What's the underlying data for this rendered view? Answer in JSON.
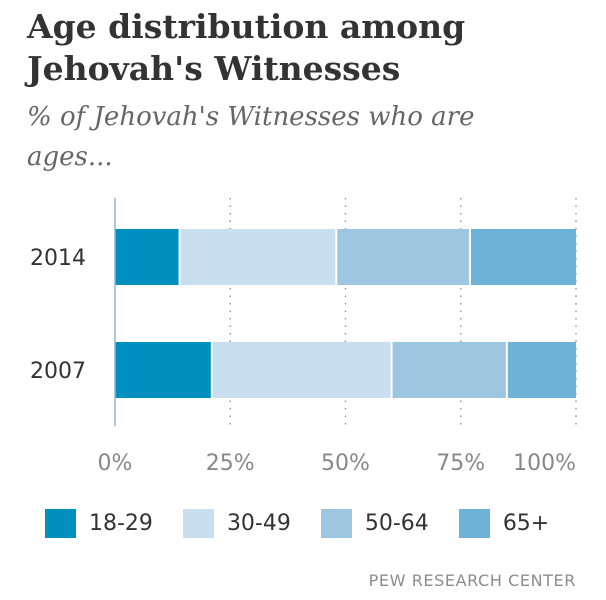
{
  "title": "Age distribution among Jehovah's Witnesses",
  "subtitle": "% of Jehovah's Witnesses who are ages...",
  "source": "PEW RESEARCH CENTER",
  "chart_data": {
    "type": "bar",
    "orientation": "horizontal",
    "stacked": true,
    "categories": [
      "2014",
      "2007"
    ],
    "series": [
      {
        "name": "18-29",
        "color": "#0090bf",
        "values": [
          14,
          21
        ]
      },
      {
        "name": "30-49",
        "color": "#c9dfef",
        "values": [
          34,
          39
        ]
      },
      {
        "name": "50-64",
        "color": "#9dc7e0",
        "values": [
          29,
          25
        ]
      },
      {
        "name": "65+",
        "color": "#6fb2d7",
        "values": [
          23,
          15
        ]
      }
    ],
    "xticks": [
      "0%",
      "25%",
      "50%",
      "75%",
      "100%"
    ],
    "xlim": [
      0,
      100
    ],
    "grid": "vertical dotted",
    "legend_position": "bottom"
  }
}
